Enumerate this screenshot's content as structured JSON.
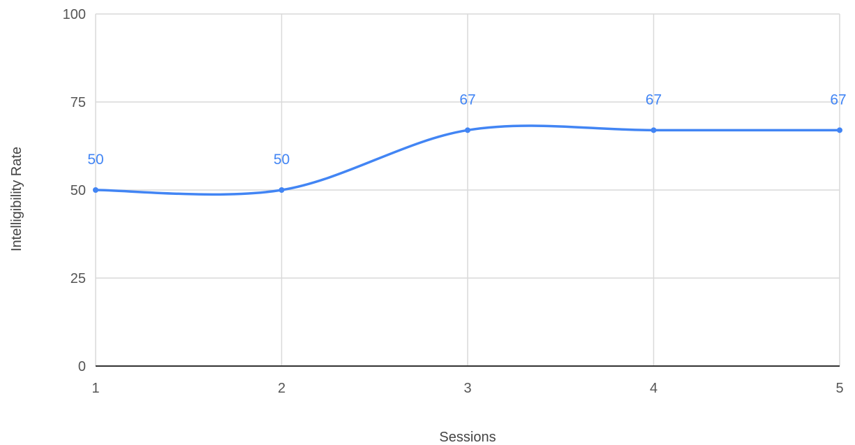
{
  "chart_data": {
    "type": "line",
    "title": "",
    "xlabel": "Sessions",
    "ylabel": "Intelligibility Rate",
    "x": [
      1,
      2,
      3,
      4,
      5
    ],
    "x_tick_labels": [
      "1",
      "2",
      "3",
      "4",
      "5"
    ],
    "y_ticks": [
      0,
      25,
      50,
      75,
      100
    ],
    "y_tick_labels": [
      "0",
      "25",
      "50",
      "75",
      "100"
    ],
    "ylim": [
      0,
      100
    ],
    "xlim": [
      1,
      5
    ],
    "grid": true,
    "smooth": true,
    "series": [
      {
        "values": [
          50,
          50,
          67,
          67,
          67
        ],
        "data_labels": [
          "50",
          "50",
          "67",
          "67",
          "67"
        ],
        "color": "#4285f4"
      }
    ],
    "legend": "none"
  },
  "colors": {
    "series": "#4285f4",
    "grid": "#d9d9d9",
    "baseline": "#333333"
  }
}
